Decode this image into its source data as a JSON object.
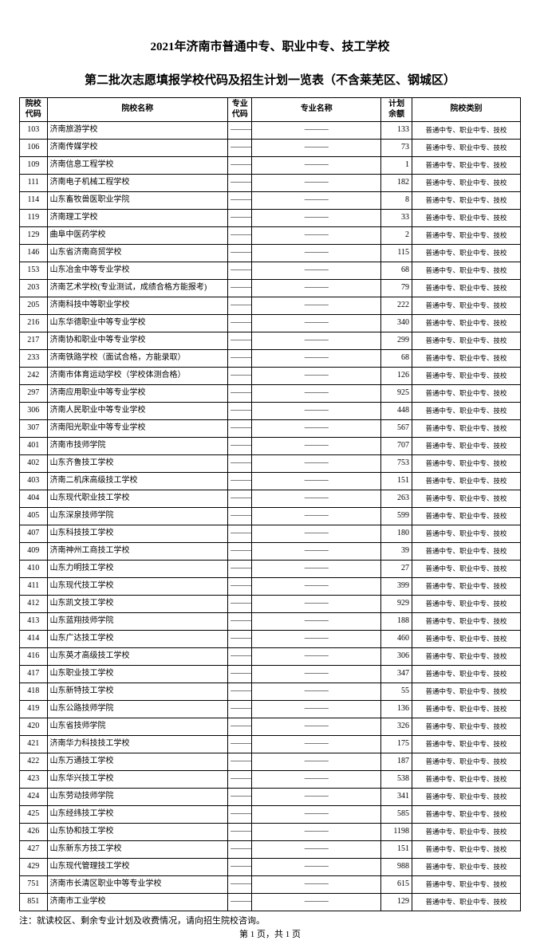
{
  "title_line1": "2021年济南市普通中专、职业中专、技工学校",
  "title_line2": "第二批次志愿填报学校代码及招生计划一览表（不含莱芜区、钢城区）",
  "columns": {
    "code": "院校\n代码",
    "name": "院校名称",
    "major": "专业\n代码",
    "mname": "专业名称",
    "quota": "计划\n余额",
    "type": "院校类别"
  },
  "dash": "———",
  "type_text": "普通中专、职业中专、技校",
  "rows": [
    {
      "code": "103",
      "name": "济南旅游学校",
      "quota": "133"
    },
    {
      "code": "106",
      "name": "济南传媒学校",
      "quota": "73"
    },
    {
      "code": "109",
      "name": "济南信息工程学校",
      "quota": "1"
    },
    {
      "code": "111",
      "name": "济南电子机械工程学校",
      "quota": "182"
    },
    {
      "code": "114",
      "name": "山东畜牧兽医职业学院",
      "quota": "8"
    },
    {
      "code": "119",
      "name": "济南理工学校",
      "quota": "33"
    },
    {
      "code": "129",
      "name": "曲阜中医药学校",
      "quota": "2"
    },
    {
      "code": "146",
      "name": "山东省济南商贸学校",
      "quota": "115"
    },
    {
      "code": "153",
      "name": "山东冶金中等专业学校",
      "quota": "68"
    },
    {
      "code": "203",
      "name": "济南艺术学校(专业测试，成绩合格方能报考)",
      "quota": "79"
    },
    {
      "code": "205",
      "name": "济南科技中等职业学校",
      "quota": "222"
    },
    {
      "code": "216",
      "name": "山东华德职业中等专业学校",
      "quota": "340"
    },
    {
      "code": "217",
      "name": "济南协和职业中等专业学校",
      "quota": "299"
    },
    {
      "code": "233",
      "name": "济南铁路学校（面试合格，方能录取）",
      "quota": "68"
    },
    {
      "code": "242",
      "name": "济南市体育运动学校（学校体测合格）",
      "quota": "126"
    },
    {
      "code": "297",
      "name": "济南应用职业中等专业学校",
      "quota": "925"
    },
    {
      "code": "306",
      "name": "济南人民职业中等专业学校",
      "quota": "448"
    },
    {
      "code": "307",
      "name": "济南阳光职业中等专业学校",
      "quota": "567"
    },
    {
      "code": "401",
      "name": "济南市技师学院",
      "quota": "707"
    },
    {
      "code": "402",
      "name": "山东齐鲁技工学校",
      "quota": "753"
    },
    {
      "code": "403",
      "name": "济南二机床高级技工学校",
      "quota": "151"
    },
    {
      "code": "404",
      "name": "山东现代职业技工学校",
      "quota": "263"
    },
    {
      "code": "405",
      "name": "山东深泉技师学院",
      "quota": "599"
    },
    {
      "code": "407",
      "name": "山东科技技工学校",
      "quota": "180"
    },
    {
      "code": "409",
      "name": "济南神州工商技工学校",
      "quota": "39"
    },
    {
      "code": "410",
      "name": "山东力明技工学校",
      "quota": "27"
    },
    {
      "code": "411",
      "name": "山东现代技工学校",
      "quota": "399"
    },
    {
      "code": "412",
      "name": "山东凯文技工学校",
      "quota": "929"
    },
    {
      "code": "413",
      "name": "山东蓝翔技师学院",
      "quota": "188"
    },
    {
      "code": "414",
      "name": "山东广达技工学校",
      "quota": "460"
    },
    {
      "code": "416",
      "name": "山东英才高级技工学校",
      "quota": "306"
    },
    {
      "code": "417",
      "name": "山东职业技工学校",
      "quota": "347"
    },
    {
      "code": "418",
      "name": "山东新特技工学校",
      "quota": "55"
    },
    {
      "code": "419",
      "name": "山东公路技师学院",
      "quota": "136"
    },
    {
      "code": "420",
      "name": "山东省技师学院",
      "quota": "326"
    },
    {
      "code": "421",
      "name": "济南华力科技技工学校",
      "quota": "175"
    },
    {
      "code": "422",
      "name": "山东万通技工学校",
      "quota": "187"
    },
    {
      "code": "423",
      "name": "山东华兴技工学校",
      "quota": "538"
    },
    {
      "code": "424",
      "name": "山东劳动技师学院",
      "quota": "341"
    },
    {
      "code": "425",
      "name": "山东经纬技工学校",
      "quota": "585"
    },
    {
      "code": "426",
      "name": "山东协和技工学校",
      "quota": "1198"
    },
    {
      "code": "427",
      "name": "山东新东方技工学校",
      "quota": "151"
    },
    {
      "code": "429",
      "name": "山东现代管理技工学校",
      "quota": "988"
    },
    {
      "code": "751",
      "name": "济南市长清区职业中等专业学校",
      "quota": "615"
    },
    {
      "code": "851",
      "name": "济南市工业学校",
      "quota": "129"
    }
  ],
  "footer_note": "注：就读校区、剩余专业计划及收费情况，请向招生院校咨询。",
  "footer_page": "第 1 页，共 1 页"
}
